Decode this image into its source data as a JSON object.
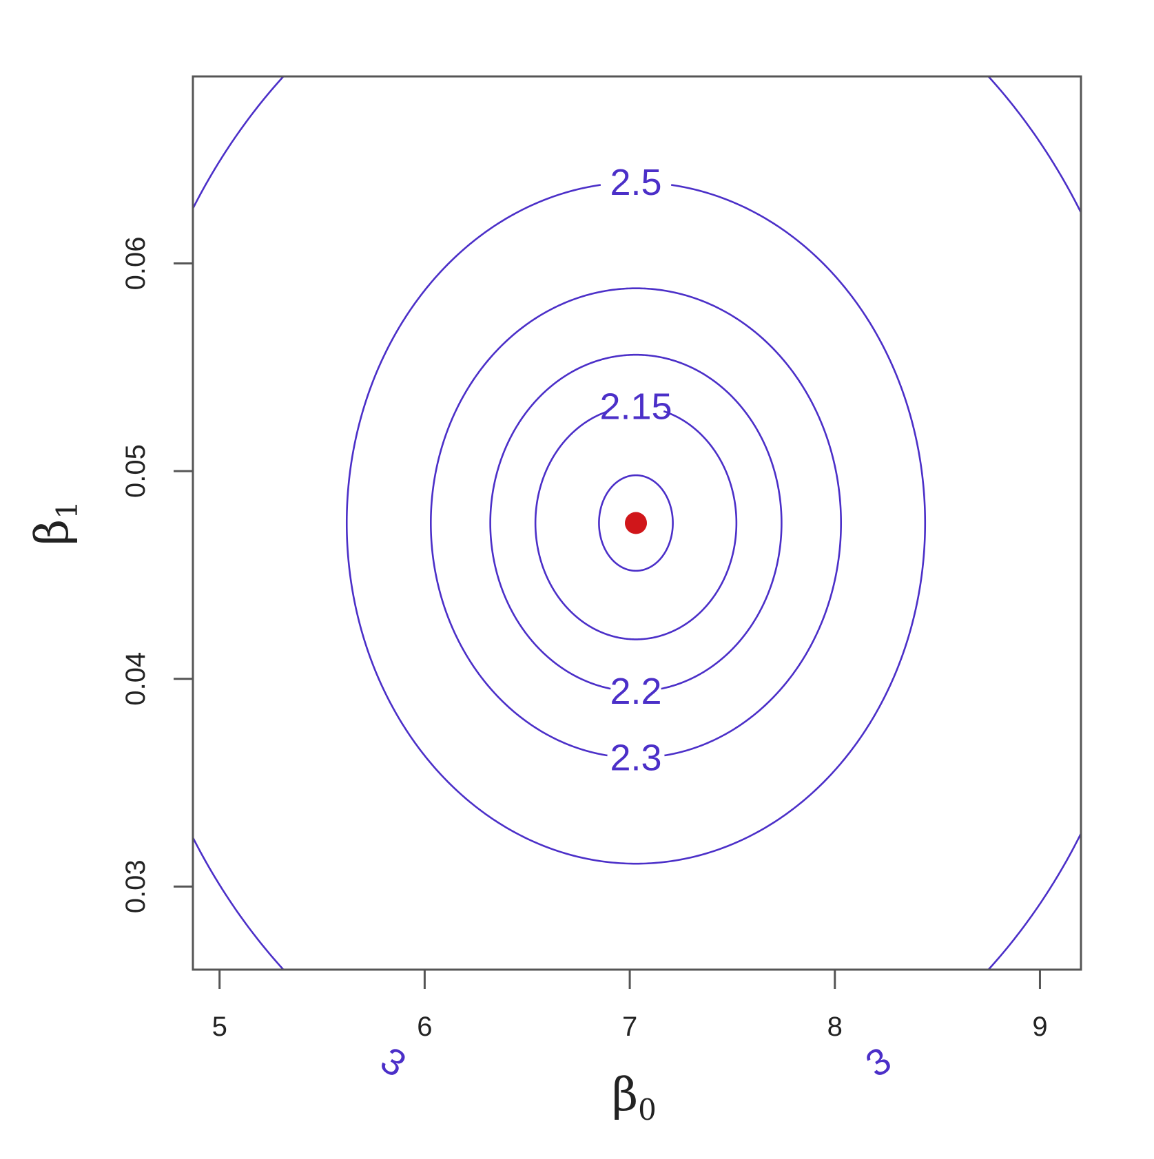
{
  "chart_data": {
    "type": "contour",
    "xlabel": "β",
    "xlabel_sub": "0",
    "ylabel": "β",
    "ylabel_sub": "1",
    "xlim": [
      4.87,
      9.2
    ],
    "ylim": [
      0.026,
      0.069
    ],
    "x_ticks": [
      5,
      6,
      7,
      8,
      9
    ],
    "x_tick_labels": [
      "5",
      "6",
      "7",
      "8",
      "9"
    ],
    "y_ticks": [
      0.03,
      0.04,
      0.05,
      0.06
    ],
    "y_tick_labels": [
      "0.03",
      "0.04",
      "0.05",
      "0.06"
    ],
    "minimum": {
      "x": 7.03,
      "y": 0.0475
    },
    "contours": [
      {
        "level_label": "",
        "rx": 0.18,
        "ry": 0.0023
      },
      {
        "level_label": "2.15",
        "rx": 0.49,
        "ry": 0.0056
      },
      {
        "level_label": "2.2",
        "rx": 0.71,
        "ry": 0.0081
      },
      {
        "level_label": "2.3",
        "rx": 1.0,
        "ry": 0.0113
      },
      {
        "level_label": "2.5",
        "rx": 1.41,
        "ry": 0.0164
      },
      {
        "level_label": "3",
        "rx": 2.52,
        "ry": 0.0294
      }
    ],
    "colors": {
      "contour": "#4b2fc8",
      "minimum": "#d0161a",
      "axes": "#555555"
    }
  }
}
